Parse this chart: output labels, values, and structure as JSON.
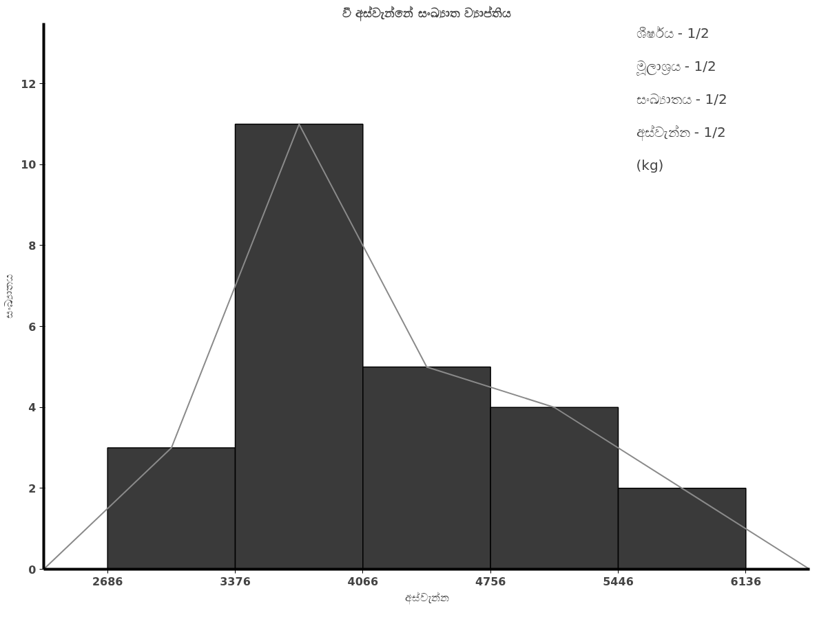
{
  "chart_data": {
    "type": "histogram",
    "title": "වී අස්වැන්නේ සංඛ්‍යාත ව්‍යාප්තිය",
    "xlabel": "අස්වැන්න",
    "ylabel": "සංඛ්‍යාතය",
    "bins": [
      2686,
      3376,
      4066,
      4756,
      5446,
      6136
    ],
    "values": [
      3,
      11,
      5,
      4,
      2
    ],
    "color": "#3a3a3a",
    "series": [
      {
        "type": "line",
        "x": [
          2341,
          3031,
          3721,
          4411,
          5101,
          5791,
          6481
        ],
        "values": [
          0,
          3,
          11,
          5,
          4,
          2,
          0
        ],
        "color": "#8a8a8a"
      }
    ],
    "xlim": [
      2341,
      6481
    ],
    "xticks": [
      2686,
      3376,
      4066,
      4756,
      5446,
      6136
    ],
    "ylim": [
      0,
      13.5
    ],
    "yticks": [
      0,
      2,
      4,
      6,
      8,
      10,
      12
    ],
    "annotations": [
      "ශීර්ෂය - 1/2",
      "මූලාශ්‍රය - 1/2",
      "සංඛ්‍යාතය - 1/2",
      "අස්වැන්න - 1/2",
      "(kg)"
    ],
    "grid": false
  }
}
